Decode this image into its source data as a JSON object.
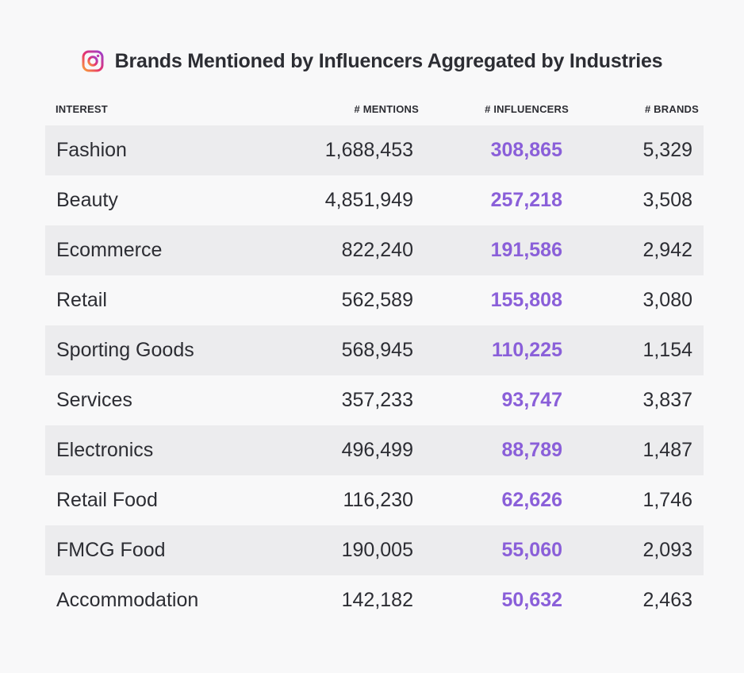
{
  "header": {
    "title": "Brands Mentioned by Influencers Aggregated by Industries",
    "logo_icon": "instagram-icon"
  },
  "colors": {
    "background": "#f8f8f9",
    "row_shade": "#ececee",
    "influencers_accent": "#8a5fd9",
    "text": "#2c2d33"
  },
  "chart_data": {
    "type": "table",
    "title": "Brands Mentioned by Influencers Aggregated by Industries",
    "columns": [
      "INTEREST",
      "# MENTIONS",
      "# INFLUENCERS",
      "# BRANDS"
    ],
    "rows": [
      {
        "interest": "Fashion",
        "mentions": "1,688,453",
        "influencers": "308,865",
        "brands": "5,329"
      },
      {
        "interest": "Beauty",
        "mentions": "4,851,949",
        "influencers": "257,218",
        "brands": "3,508"
      },
      {
        "interest": "Ecommerce",
        "mentions": "822,240",
        "influencers": "191,586",
        "brands": "2,942"
      },
      {
        "interest": "Retail",
        "mentions": "562,589",
        "influencers": "155,808",
        "brands": "3,080"
      },
      {
        "interest": "Sporting Goods",
        "mentions": "568,945",
        "influencers": "110,225",
        "brands": "1,154"
      },
      {
        "interest": "Services",
        "mentions": "357,233",
        "influencers": "93,747",
        "brands": "3,837"
      },
      {
        "interest": "Electronics",
        "mentions": "496,499",
        "influencers": "88,789",
        "brands": "1,487"
      },
      {
        "interest": "Retail Food",
        "mentions": "116,230",
        "influencers": "62,626",
        "brands": "1,746"
      },
      {
        "interest": "FMCG Food",
        "mentions": "190,005",
        "influencers": "55,060",
        "brands": "2,093"
      },
      {
        "interest": "Accommodation",
        "mentions": "142,182",
        "influencers": "50,632",
        "brands": "2,463"
      }
    ]
  }
}
